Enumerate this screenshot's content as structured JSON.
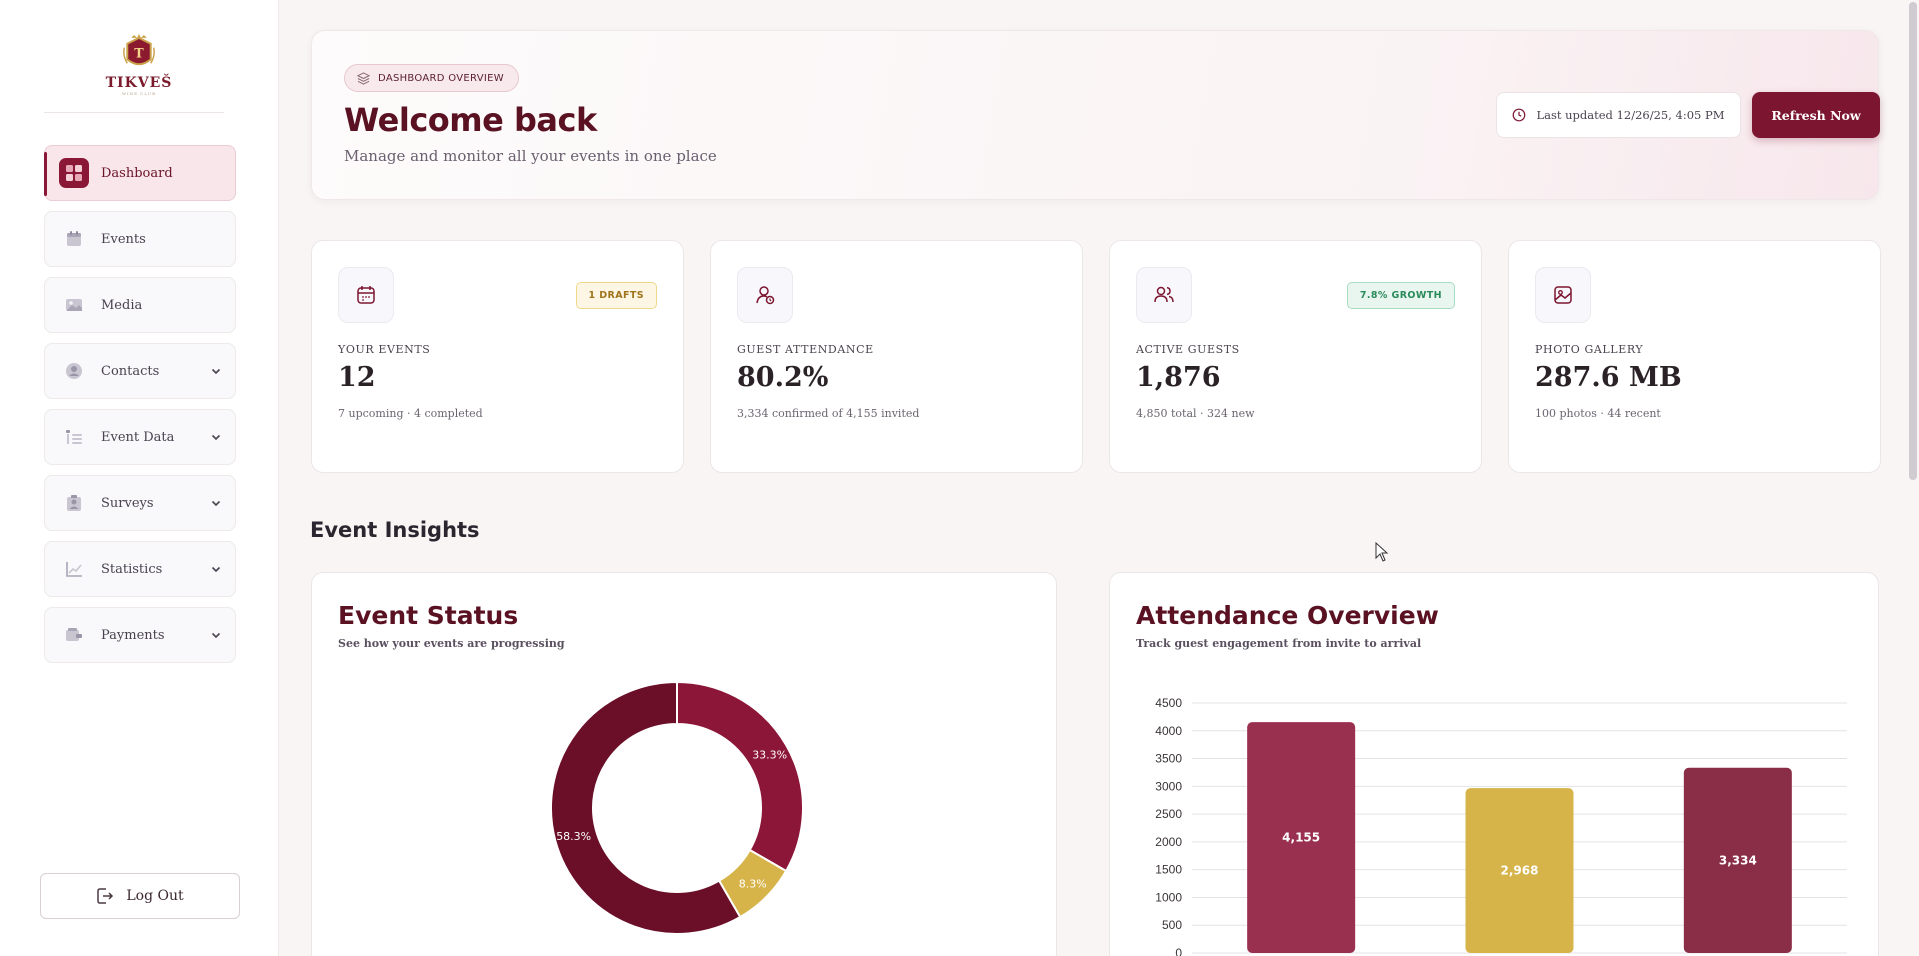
{
  "brand": {
    "name": "TIKVEŠ",
    "tagline": "WINE CLUB"
  },
  "sidebar": {
    "items": [
      {
        "label": "Dashboard",
        "icon": "dashboard-icon",
        "active": true,
        "expandable": false
      },
      {
        "label": "Events",
        "icon": "calendar-icon",
        "active": false,
        "expandable": false
      },
      {
        "label": "Media",
        "icon": "image-icon",
        "active": false,
        "expandable": false
      },
      {
        "label": "Contacts",
        "icon": "person-icon",
        "active": false,
        "expandable": true
      },
      {
        "label": "Event Data",
        "icon": "list-tree-icon",
        "active": false,
        "expandable": true
      },
      {
        "label": "Surveys",
        "icon": "clipboard-user-icon",
        "active": false,
        "expandable": true
      },
      {
        "label": "Statistics",
        "icon": "line-chart-icon",
        "active": false,
        "expandable": true
      },
      {
        "label": "Payments",
        "icon": "wallet-icon",
        "active": false,
        "expandable": true
      }
    ],
    "logout_label": "Log Out"
  },
  "hero": {
    "pill": "DASHBOARD OVERVIEW",
    "title": "Welcome back",
    "subtitle": "Manage and monitor all your events in one place",
    "updated": "Last updated 12/26/25, 4:05 PM",
    "refresh_label": "Refresh Now"
  },
  "stats": [
    {
      "label": "YOUR EVENTS",
      "value": "12",
      "sub": "7 upcoming · 4 completed",
      "badge": "1 DRAFTS",
      "icon": "calendar-icon"
    },
    {
      "label": "GUEST ATTENDANCE",
      "value": "80.2%",
      "sub": "3,334 confirmed of 4,155 invited",
      "badge": "",
      "icon": "user-check-icon"
    },
    {
      "label": "ACTIVE GUESTS",
      "value": "1,876",
      "sub": "4,850 total · 324 new",
      "badge": "7.8% GROWTH",
      "icon": "users-icon"
    },
    {
      "label": "PHOTO GALLERY",
      "value": "287.6 MB",
      "sub": "100 photos · 44 recent",
      "badge": "",
      "icon": "image-icon"
    }
  ],
  "insights": {
    "title": "Event Insights"
  },
  "colors": {
    "accent": "#7c1530",
    "gold": "#d6b44a",
    "wine_light": "#99304f",
    "wine_mid": "#8a2e47",
    "wine_dark": "#6b0f28"
  },
  "chart_data": [
    {
      "type": "pie",
      "title": "Event Status",
      "subtitle": "See how your events are progressing",
      "slices": [
        {
          "label": "33.3%",
          "value": 33.3,
          "color": "#8c1637"
        },
        {
          "label": "8.3%",
          "value": 8.3,
          "color": "#d6b44a"
        },
        {
          "label": "58.3%",
          "value": 58.3,
          "color": "#6b0f28"
        }
      ]
    },
    {
      "type": "bar",
      "title": "Attendance Overview",
      "subtitle": "Track guest engagement from invite to arrival",
      "values": [
        4155,
        2968,
        3334
      ],
      "value_labels": [
        "4,155",
        "2,968",
        "3,334"
      ],
      "colors": [
        "#99304f",
        "#d6b44a",
        "#8a2e47"
      ],
      "ylim": [
        0,
        4500
      ],
      "yticks": [
        "0",
        "500",
        "1000",
        "1500",
        "2000",
        "2500",
        "3000",
        "3500",
        "4000",
        "4500"
      ],
      "grid": true
    }
  ]
}
